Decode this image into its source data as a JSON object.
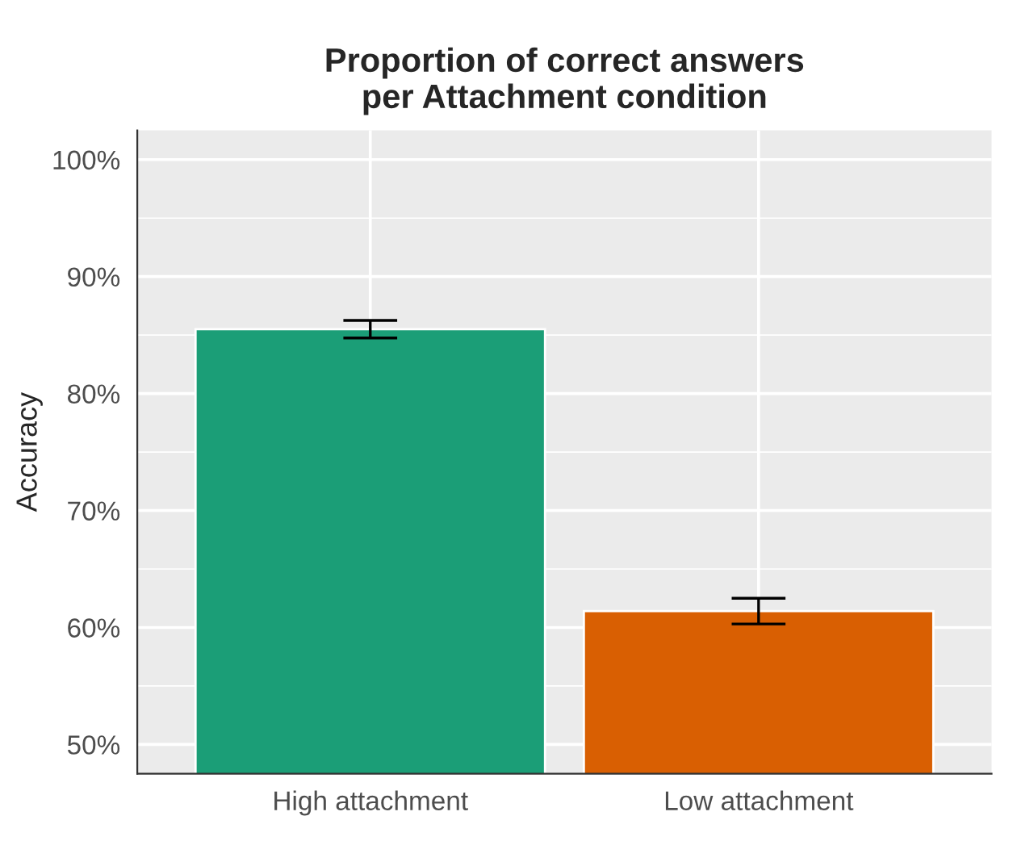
{
  "chart_data": {
    "type": "bar",
    "title": "Proportion of correct answers\nper Attachment condition",
    "ylabel": "Accuracy",
    "categories": [
      "High attachment",
      "Low attachment"
    ],
    "values": [
      85.5,
      61.4
    ],
    "colors": [
      "#1b9e77",
      "#d95f02"
    ],
    "errors": [
      0.75,
      1.1
    ],
    "ylim": [
      47.5,
      102.5
    ],
    "yticks": [
      {
        "value": 50,
        "label": "50%"
      },
      {
        "value": 60,
        "label": "60%"
      },
      {
        "value": 70,
        "label": "70%"
      },
      {
        "value": 80,
        "label": "80%"
      },
      {
        "value": 90,
        "label": "90%"
      },
      {
        "value": 100,
        "label": "100%"
      }
    ],
    "grid": true
  }
}
